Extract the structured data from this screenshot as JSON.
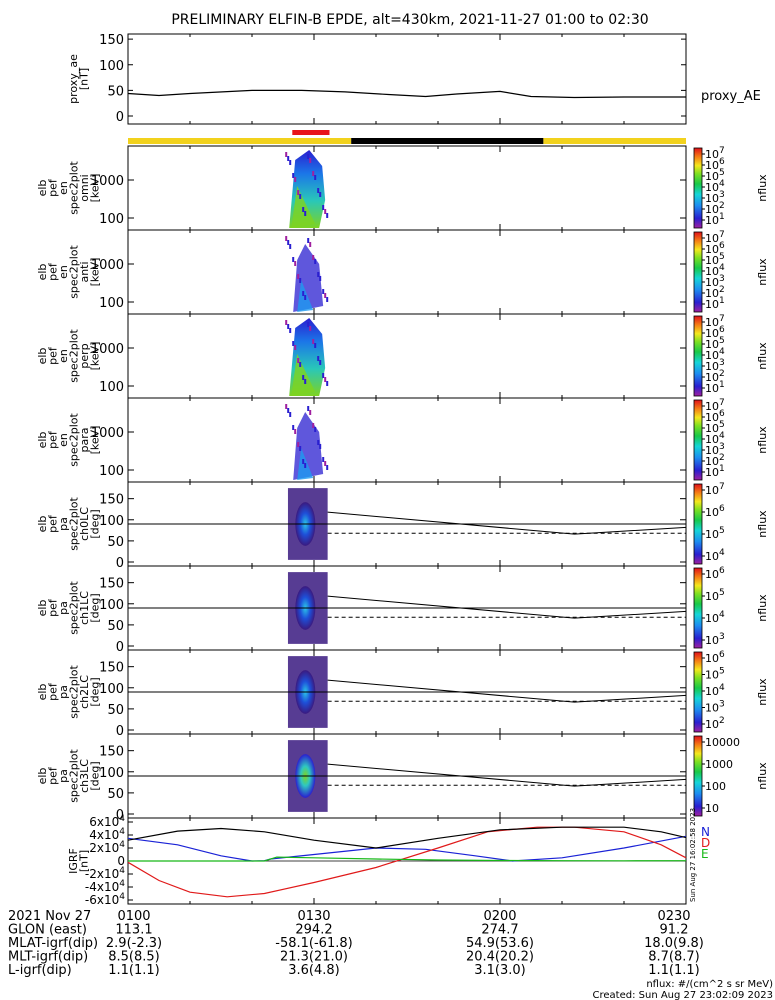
{
  "title": "PRELIMINARY ELFIN-B EPDE, alt=430km, 2021-11-27 01:00 to 02:30",
  "colors": {
    "sunlit": "#f2d21d",
    "eclipse": "#000000",
    "science_zone": "#e8141b",
    "ae_line": "#000000",
    "mag_n": "#1a22d6",
    "mag_d": "#e01a1a",
    "mag_e": "#17b818",
    "mag_total": "#000000"
  },
  "chart_data": [
    {
      "type": "line",
      "panel": "proxy_ae",
      "ylabel_lines": [
        "proxy_ae",
        "[nT]"
      ],
      "legend": "proxy_AE",
      "ylim": [
        0,
        160
      ],
      "yticks": [
        "0",
        "50",
        "100",
        "150"
      ],
      "x_minutes": [
        0,
        5,
        10,
        20,
        28,
        35,
        42,
        48,
        53,
        60,
        65,
        72,
        80,
        90
      ],
      "values": [
        44,
        40,
        44,
        50,
        50,
        47,
        42,
        38,
        43,
        48,
        38,
        36,
        37,
        37
      ]
    },
    {
      "type": "bar",
      "panel": "orbit_bar",
      "segments": [
        {
          "state": "sunlit",
          "from_minute": 0,
          "to_minute": 36
        },
        {
          "state": "eclipse",
          "from_minute": 36,
          "to_minute": 67
        },
        {
          "state": "sunlit",
          "from_minute": 67,
          "to_minute": 90
        }
      ],
      "science_zone": {
        "from_minute": 26.5,
        "to_minute": 32.5
      }
    },
    {
      "type": "heatmap",
      "panel": "energy_omni",
      "ylabel_lines": [
        "elb",
        "pef",
        "en",
        "spec2plot",
        "omni",
        "[keV]"
      ],
      "yscale": "log",
      "yticks": [
        "100",
        "1000"
      ],
      "colorbar": {
        "label": "nflux",
        "ticks": [
          "10^1",
          "10^2",
          "10^3",
          "10^4",
          "10^5",
          "10^6",
          "10^7"
        ]
      }
    },
    {
      "type": "heatmap",
      "panel": "energy_anti",
      "ylabel_lines": [
        "elb",
        "pef",
        "en",
        "spec2plot",
        "anti",
        "[keV]"
      ],
      "yscale": "log",
      "yticks": [
        "100",
        "1000"
      ],
      "colorbar": {
        "label": "nflux",
        "ticks": [
          "10^1",
          "10^2",
          "10^3",
          "10^4",
          "10^5",
          "10^6",
          "10^7"
        ]
      }
    },
    {
      "type": "heatmap",
      "panel": "energy_perp",
      "ylabel_lines": [
        "elb",
        "pef",
        "en",
        "spec2plot",
        "perp",
        "[keV]"
      ],
      "yscale": "log",
      "yticks": [
        "100",
        "1000"
      ],
      "colorbar": {
        "label": "nflux",
        "ticks": [
          "10^1",
          "10^2",
          "10^3",
          "10^4",
          "10^5",
          "10^6",
          "10^7"
        ]
      }
    },
    {
      "type": "heatmap",
      "panel": "energy_para",
      "ylabel_lines": [
        "elb",
        "pef",
        "en",
        "spec2plot",
        "para",
        "[keV]"
      ],
      "yscale": "log",
      "yticks": [
        "100",
        "1000"
      ],
      "colorbar": {
        "label": "nflux",
        "ticks": [
          "10^1",
          "10^2",
          "10^3",
          "10^4",
          "10^5",
          "10^6",
          "10^7"
        ]
      }
    },
    {
      "type": "heatmap",
      "panel": "pa_ch0",
      "ylabel_lines": [
        "elb",
        "pef",
        "pa",
        "spec2plot",
        "ch0LC",
        "[deg]"
      ],
      "ylim": [
        0,
        180
      ],
      "yticks": [
        "0",
        "50",
        "100",
        "150"
      ],
      "colorbar": {
        "label": "nflux",
        "ticks": [
          "10^4",
          "10^5",
          "10^6",
          "10^7"
        ]
      }
    },
    {
      "type": "heatmap",
      "panel": "pa_ch1",
      "ylabel_lines": [
        "elb",
        "pef",
        "pa",
        "spec2plot",
        "ch1LC",
        "[deg]"
      ],
      "ylim": [
        0,
        180
      ],
      "yticks": [
        "0",
        "50",
        "100",
        "150"
      ],
      "colorbar": {
        "label": "nflux",
        "ticks": [
          "10^3",
          "10^4",
          "10^5",
          "10^6"
        ]
      }
    },
    {
      "type": "heatmap",
      "panel": "pa_ch2",
      "ylabel_lines": [
        "elb",
        "pef",
        "pa",
        "spec2plot",
        "ch2LC",
        "[deg]"
      ],
      "ylim": [
        0,
        180
      ],
      "yticks": [
        "0",
        "50",
        "100",
        "150"
      ],
      "colorbar": {
        "label": "nflux",
        "ticks": [
          "10^2",
          "10^3",
          "10^4",
          "10^5",
          "10^6"
        ]
      }
    },
    {
      "type": "heatmap",
      "panel": "pa_ch3",
      "ylabel_lines": [
        "elb",
        "pef",
        "pa",
        "spec2plot",
        "ch3LC",
        "[deg]"
      ],
      "ylim": [
        0,
        180
      ],
      "yticks": [
        "0",
        "50",
        "100",
        "150"
      ],
      "colorbar": {
        "label": "nflux",
        "ticks": [
          "10",
          "100",
          "1000",
          "10000"
        ]
      }
    },
    {
      "type": "line",
      "panel": "igrf",
      "ylabel_lines": [
        "IGRF",
        "[nT]"
      ],
      "ylim": [
        -60000,
        60000
      ],
      "yticks": [
        "6x10^4",
        "4x10^4",
        "2x10^4",
        "0",
        "-2x10^4",
        "-4x10^4",
        "-6x10^4"
      ],
      "legend": [
        "N",
        "D",
        "E"
      ],
      "side_stamp": "Sun Aug 27 16:02:58 2023",
      "series": [
        {
          "name": "N",
          "x_minutes": [
            0,
            8,
            15,
            20,
            22,
            23,
            30,
            40,
            48,
            56,
            62,
            70,
            80,
            90
          ],
          "values": [
            35000,
            25000,
            8000,
            0,
            500,
            3000,
            10000,
            20000,
            18000,
            8000,
            0,
            5000,
            20000,
            38000
          ]
        },
        {
          "name": "D",
          "x_minutes": [
            0,
            5,
            10,
            16,
            22,
            30,
            40,
            50,
            58,
            66,
            72,
            80,
            86,
            90
          ],
          "values": [
            -2000,
            -30000,
            -48000,
            -55000,
            -50000,
            -33000,
            -10000,
            20000,
            45000,
            52000,
            52000,
            45000,
            25000,
            5000
          ]
        },
        {
          "name": "E",
          "x_minutes": [
            0,
            20,
            22,
            24,
            30,
            40,
            50,
            60,
            70,
            80,
            90
          ],
          "values": [
            0,
            0,
            0,
            6000,
            5000,
            3000,
            1500,
            800,
            400,
            300,
            400
          ]
        },
        {
          "name": "total",
          "x_minutes": [
            0,
            8,
            15,
            22,
            30,
            40,
            50,
            60,
            70,
            80,
            86,
            90
          ],
          "values": [
            32000,
            46000,
            50000,
            45000,
            32000,
            20000,
            35000,
            48000,
            52000,
            52000,
            45000,
            36000
          ]
        }
      ]
    }
  ],
  "ephemeris": {
    "rows": [
      {
        "label": "2021 Nov 27",
        "values": [
          "0100",
          "0130",
          "0200",
          "0230"
        ]
      },
      {
        "label": "GLON (east)",
        "values": [
          "113.1",
          "294.2",
          "274.7",
          "91.2"
        ]
      },
      {
        "label": "MLAT-igrf(dip)",
        "values": [
          "2.9(-2.3)",
          "-58.1(-61.8)",
          "54.9(53.6)",
          "18.0(9.8)"
        ]
      },
      {
        "label": "MLT-igrf(dip)",
        "values": [
          "8.5(8.5)",
          "21.3(21.0)",
          "20.4(20.2)",
          "8.7(8.7)"
        ]
      },
      {
        "label": "L-igrf(dip)",
        "values": [
          "1.1(1.1)",
          "3.6(4.8)",
          "3.1(3.0)",
          "1.1(1.1)"
        ]
      }
    ]
  },
  "footer": {
    "units": "nflux: #/(cm^2 s sr MeV)",
    "created": "Created: Sun Aug 27 23:02:09 2023"
  }
}
